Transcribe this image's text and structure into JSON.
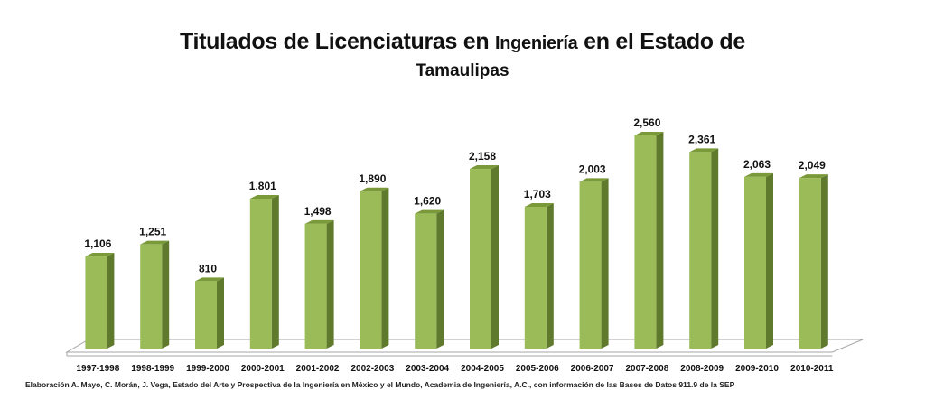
{
  "title": {
    "part1": "Titulados de Licenciaturas en ",
    "part2": "Ingeniería",
    "part3": " en el Estado de",
    "line2": "Tamaulipas"
  },
  "source_note": "Elaboración A. Mayo, C. Morán, J. Vega, Estado del Arte y Prospectiva de la Ingeniería en México y el Mundo, Academia de Ingeniería, A.C., con información de las Bases de Datos  911.9  de la SEP",
  "colors": {
    "bar_front": "#9bbb59",
    "bar_side": "#5f7a2c",
    "bar_top": "#7a9a3a",
    "floor": "#ffffff",
    "floor_edge": "#a6a6a6"
  },
  "chart_data": {
    "type": "bar",
    "title": "Titulados de Licenciaturas en Ingeniería en el Estado de Tamaulipas",
    "categories": [
      "1997-1998",
      "1998-1999",
      "1999-2000",
      "2000-2001",
      "2001-2002",
      "2002-2003",
      "2003-2004",
      "2004-2005",
      "2005-2006",
      "2006-2007",
      "2007-2008",
      "2008-2009",
      "2009-2010",
      "2010-2011"
    ],
    "values": [
      1106,
      1251,
      810,
      1801,
      1498,
      1890,
      1620,
      2158,
      1703,
      2003,
      2560,
      2361,
      2063,
      2049
    ],
    "value_labels": [
      "1,106",
      "1,251",
      "810",
      "1,801",
      "1,498",
      "1,890",
      "1,620",
      "2,158",
      "1,703",
      "2,003",
      "2,560",
      "2,361",
      "2,063",
      "2,049"
    ],
    "style": "3d-column",
    "grid": false,
    "legend": "none"
  }
}
